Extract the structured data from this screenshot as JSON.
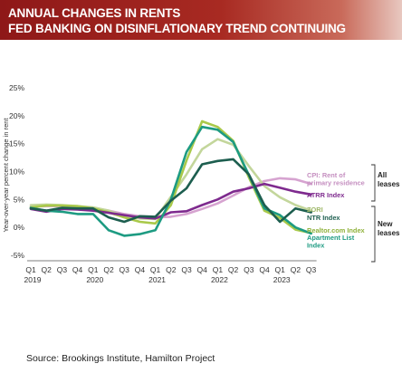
{
  "header": {
    "line1": "ANNUAL CHANGES IN RENTS",
    "line2": "FED BANKING ON DISINFLATIONARY TREND CONTINUING"
  },
  "source": "Source:  Brookings Institute,  Hamilton Project",
  "chart_data": {
    "type": "line",
    "title": "",
    "xlabel": "",
    "ylabel": "Year-over-year percent change in rent",
    "ylim": [
      -5,
      25
    ],
    "yticks": [
      "25%",
      "20%",
      "15%",
      "10%",
      "5%",
      "0%",
      "-5%"
    ],
    "grid": false,
    "x_categories": [
      "2019 Q1",
      "2019 Q2",
      "2019 Q3",
      "2019 Q4",
      "2020 Q1",
      "2020 Q2",
      "2020 Q3",
      "2020 Q4",
      "2021 Q1",
      "2021 Q2",
      "2021 Q3",
      "2021 Q4",
      "2022 Q1",
      "2022 Q2",
      "2022 Q3",
      "2022 Q4",
      "2023 Q1",
      "2023 Q2",
      "2023 Q3"
    ],
    "x_tick_labels": [
      "Q1",
      "Q2",
      "Q3",
      "Q4",
      "Q1",
      "Q2",
      "Q3",
      "Q4",
      "Q1",
      "Q2",
      "Q3",
      "Q4",
      "Q1",
      "Q2",
      "Q3",
      "Q4",
      "Q1",
      "Q2",
      "Q3"
    ],
    "year_labels": [
      "2019",
      "2020",
      "2021",
      "2022",
      "2023"
    ],
    "series": [
      {
        "name": "CPI: Rent of primary residence",
        "color": "#d6a3d0",
        "values": [
          3.7,
          3.8,
          3.8,
          3.7,
          3.5,
          3.0,
          2.4,
          2.0,
          1.8,
          1.9,
          2.4,
          3.3,
          4.3,
          5.7,
          7.2,
          8.3,
          8.8,
          8.6,
          7.8
        ]
      },
      {
        "name": "ATRR Index",
        "color": "#7e2a8e",
        "values": [
          3.3,
          2.8,
          3.3,
          3.2,
          3.0,
          2.6,
          2.2,
          1.8,
          1.6,
          2.7,
          2.9,
          4.0,
          5.0,
          6.4,
          7.0,
          7.8,
          7.1,
          6.4,
          5.9
        ]
      },
      {
        "name": "ZORI",
        "color": "#c3d69b",
        "values": [
          4.0,
          4.1,
          4.0,
          3.8,
          3.6,
          3.0,
          2.0,
          1.6,
          1.5,
          5.5,
          9.5,
          14.0,
          15.8,
          14.8,
          11.0,
          7.4,
          5.4,
          4.0,
          3.0
        ]
      },
      {
        "name": "NTR Index",
        "color": "#1d5e4f",
        "values": [
          3.4,
          3.0,
          3.5,
          3.4,
          3.4,
          1.8,
          1.0,
          2.0,
          1.9,
          4.8,
          7.0,
          11.3,
          11.9,
          12.2,
          9.5,
          4.0,
          1.0,
          3.4,
          2.7
        ]
      },
      {
        "name": "Realtor.com Index",
        "color": "#a9c94a",
        "values": [
          3.6,
          3.9,
          3.9,
          3.8,
          3.4,
          2.7,
          1.8,
          1.0,
          0.7,
          4.0,
          12.0,
          19.0,
          18.0,
          15.5,
          9.0,
          3.0,
          1.7,
          -0.4,
          -1.0
        ]
      },
      {
        "name": "Apartment List Index",
        "color": "#1d9b82",
        "values": [
          3.5,
          3.0,
          2.8,
          2.4,
          2.4,
          -0.5,
          -1.5,
          -1.2,
          -0.5,
          5.0,
          13.5,
          18.0,
          17.5,
          15.3,
          9.4,
          3.4,
          2.2,
          0.0,
          -1.1
        ]
      }
    ],
    "legend_groups": [
      {
        "label_line1": "All",
        "label_line2": "leases"
      },
      {
        "label_line1": "New",
        "label_line2": "leases"
      }
    ],
    "legend_placement": "right"
  }
}
